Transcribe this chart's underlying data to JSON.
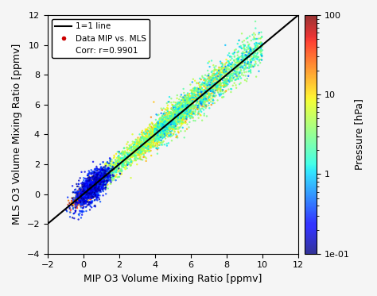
{
  "title": "",
  "xlabel": "MIP O3 Volume Mixing Ratio [ppmv]",
  "ylabel": "MLS O3 Volume Mixing Ratio [ppmv]",
  "xlim": [
    -2,
    12
  ],
  "ylim": [
    -4,
    12
  ],
  "xticks": [
    -2,
    0,
    2,
    4,
    6,
    8,
    10,
    12
  ],
  "yticks": [
    -4,
    -2,
    0,
    2,
    4,
    6,
    8,
    10,
    12
  ],
  "colorbar_label": "Pressure [hPa]",
  "colorbar_ticks": [
    0.1,
    1,
    10,
    100
  ],
  "colorbar_ticklabels": [
    "1e-01",
    "1",
    "10",
    "100"
  ],
  "vmin_log": -1,
  "vmax_log": 2,
  "cmap": "jet",
  "line_color": "black",
  "line_label": "1=1 line",
  "scatter_label": "Data MIP vs. MLS",
  "corr_label": "Corr: r=0.9901",
  "legend_scatter_color": "#cc0000",
  "n_points_high": 3000,
  "n_points_low": 1200,
  "seed": 42,
  "background_color": "#f5f5f5",
  "grid": false,
  "figsize": [
    4.74,
    3.73
  ],
  "dpi": 100
}
